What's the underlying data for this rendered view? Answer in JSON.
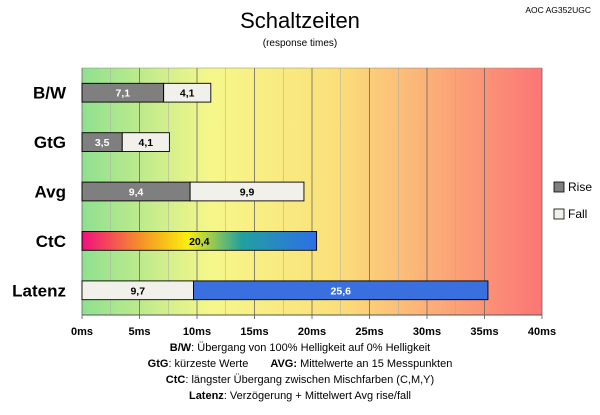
{
  "chart_data": {
    "type": "bar",
    "title": "Schaltzeiten",
    "subtitle": "(response times)",
    "model": "AOC AG352UGC",
    "xlim": [
      0,
      40
    ],
    "x_tick_labels": [
      "0ms",
      "5ms",
      "10ms",
      "15ms",
      "20ms",
      "25ms",
      "30ms",
      "35ms",
      "40ms"
    ],
    "categories": [
      "B/W",
      "GtG",
      "Avg",
      "CtC",
      "Latenz"
    ],
    "stacked": true,
    "legend_position": "right",
    "series": [
      {
        "name": "Rise",
        "color": "#7f7f7f",
        "values": [
          7.1,
          3.5,
          9.4,
          null,
          null
        ],
        "labels": [
          "7,1",
          "3,5",
          "9,4",
          null,
          null
        ]
      },
      {
        "name": "Fall",
        "color": "#f2f0ea",
        "values": [
          4.1,
          4.1,
          9.9,
          null,
          9.7
        ],
        "labels": [
          "4,1",
          "4,1",
          "9,9",
          null,
          "9,7"
        ]
      },
      {
        "name": "",
        "color": "gradient",
        "values": [
          null,
          null,
          null,
          20.4,
          null
        ],
        "labels": [
          null,
          null,
          null,
          "20,4",
          null
        ]
      },
      {
        "name": "",
        "color": "#3a6fe0",
        "values": [
          null,
          null,
          null,
          null,
          25.6
        ],
        "labels": [
          null,
          null,
          null,
          null,
          "25,6"
        ]
      }
    ],
    "background": "gradient green to yellow to red"
  },
  "notes": {
    "bw_term": "B/W",
    "bw_text": ":  Übergang von 100% Helligkeit auf 0% Helligkeit",
    "gtg_term": "GtG",
    "gtg_text": ": kürzeste  Werte",
    "avg_term": "AVG:",
    "avg_text": " Mittelwerte  an 15 Messpunkten",
    "ctc_term": "CtC",
    "ctc_text": ": längster Übergang  zwischen Mischfarben (C,M,Y)",
    "lat_term": "Latenz",
    "lat_text": ": Verzögerung  + Mittelwert Avg rise/fall"
  }
}
